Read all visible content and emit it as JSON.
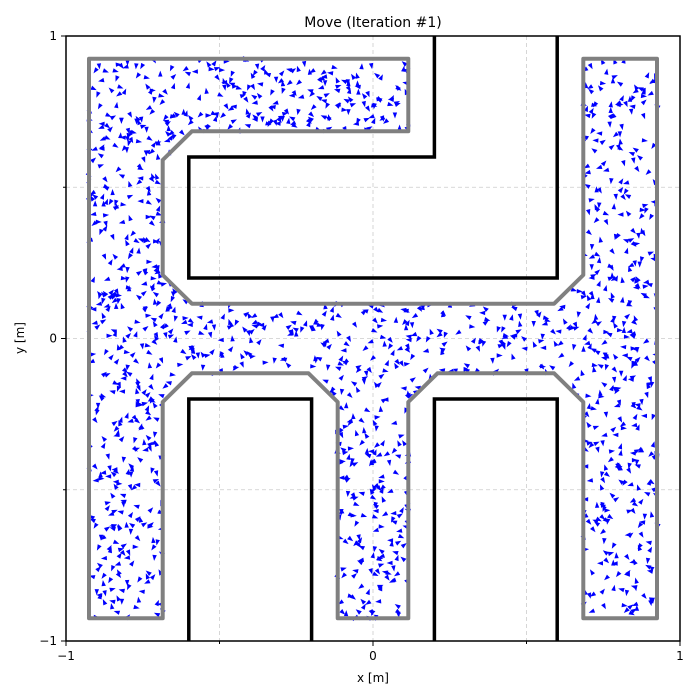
{
  "chart_data": {
    "type": "quiver",
    "title": "Move (Iteration #1)",
    "xlabel": "x [m]",
    "ylabel": "y [m]",
    "xlim": [
      -1,
      1
    ],
    "ylim": [
      -1,
      1
    ],
    "x_ticks": [
      -1,
      0,
      1
    ],
    "y_ticks": [
      -1,
      0,
      1
    ],
    "x_tick_labels": [
      "−1",
      "0",
      "1"
    ],
    "y_tick_labels": [
      "−1",
      "0",
      "1"
    ],
    "grid": true,
    "wall_color": "#000000",
    "boundary_color": "#808080",
    "particle_color": "#0000ff",
    "walls": [
      [
        [
          0.2,
          1
        ],
        [
          0.2,
          0.6
        ],
        [
          -0.6,
          0.6
        ],
        [
          -0.6,
          0.2
        ],
        [
          0.6,
          0.2
        ],
        [
          0.6,
          1
        ]
      ],
      [
        [
          -0.6,
          -1
        ],
        [
          -0.6,
          -0.2
        ],
        [
          -0.2,
          -0.2
        ],
        [
          -0.2,
          -1
        ]
      ],
      [
        [
          0.2,
          -1
        ],
        [
          0.2,
          -0.2
        ],
        [
          0.6,
          -0.2
        ],
        [
          0.6,
          -1
        ]
      ]
    ],
    "boundary": [
      [
        -0.925,
        0.925
      ],
      [
        0.115,
        0.925
      ],
      [
        0.115,
        0.685
      ],
      [
        -0.59,
        0.685
      ],
      [
        -0.685,
        0.59
      ],
      [
        -0.685,
        0.21
      ],
      [
        -0.59,
        0.115
      ],
      [
        0.59,
        0.115
      ],
      [
        0.685,
        0.21
      ],
      [
        0.685,
        0.925
      ],
      [
        0.925,
        0.925
      ],
      [
        0.925,
        -0.925
      ],
      [
        0.685,
        -0.925
      ],
      [
        0.685,
        -0.21
      ],
      [
        0.59,
        -0.115
      ],
      [
        0.21,
        -0.115
      ],
      [
        0.115,
        -0.21
      ],
      [
        0.115,
        -0.925
      ],
      [
        -0.115,
        -0.925
      ],
      [
        -0.115,
        -0.21
      ],
      [
        -0.21,
        -0.115
      ],
      [
        -0.59,
        -0.115
      ],
      [
        -0.685,
        -0.21
      ],
      [
        -0.685,
        -0.925
      ],
      [
        -0.925,
        -0.925
      ]
    ],
    "particle_count": 1500
  }
}
